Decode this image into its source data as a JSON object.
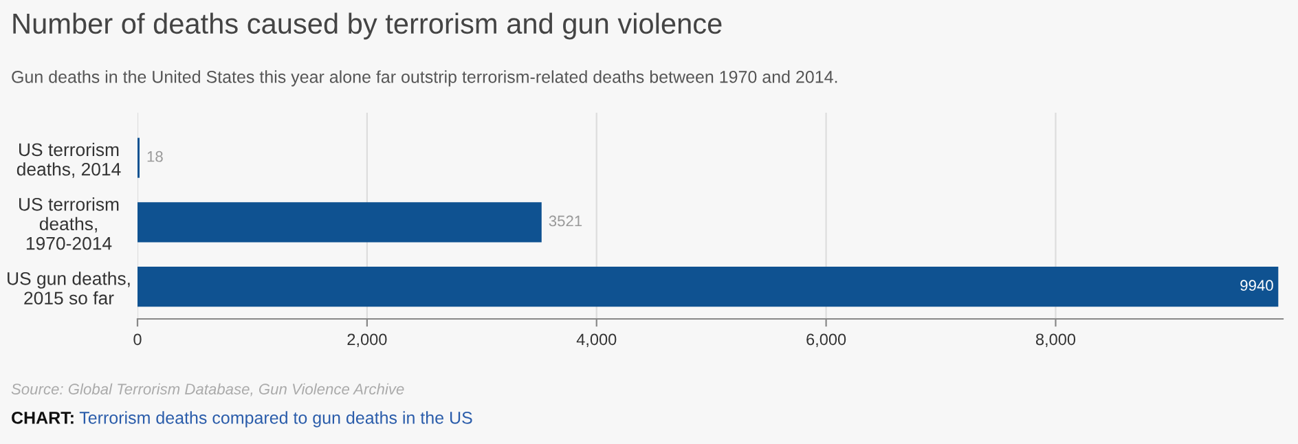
{
  "chart_data": {
    "type": "bar",
    "orientation": "horizontal",
    "title": "Number of deaths caused by terrorism and gun violence",
    "subtitle": "Gun deaths in the United States this year alone far outstrip terrorism-related deaths between 1970 and 2014.",
    "categories": [
      "US terrorism\ndeaths, 2014",
      "US terrorism\ndeaths,\n1970-2014",
      "US gun deaths,\n2015 so far"
    ],
    "values": [
      18,
      3521,
      9940
    ],
    "color": "#0f5291",
    "data_labels": true,
    "xlim": [
      0,
      9980
    ],
    "xticks": [
      0,
      {
        "value": 2000,
        "label": "2,000"
      },
      {
        "value": 4000,
        "label": "4,000"
      },
      {
        "value": 6000,
        "label": "6,000"
      },
      {
        "value": 8000,
        "label": "8,000"
      }
    ],
    "grid": "x",
    "annotations": [
      "Source: Global Terrorism Database, Gun Violence Archive",
      "CHART:",
      "Terrorism deaths compared to gun deaths in the US"
    ]
  }
}
